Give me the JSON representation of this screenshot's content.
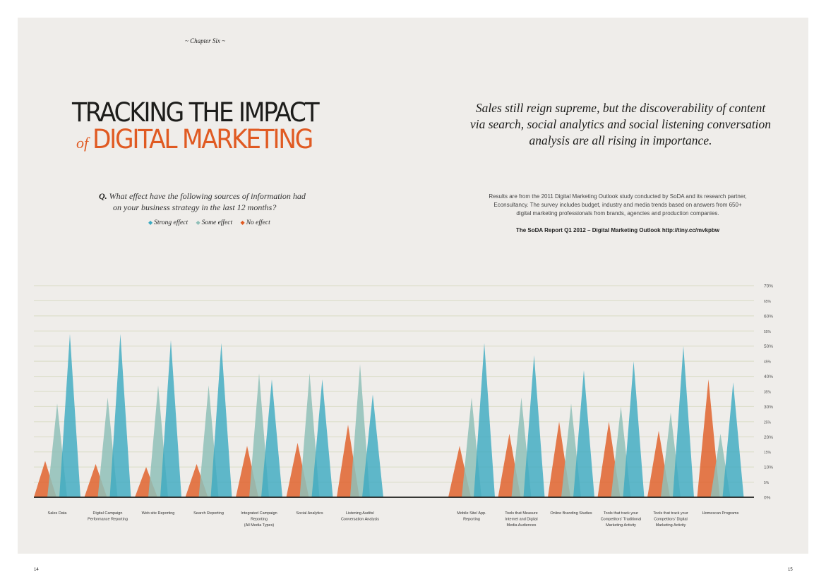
{
  "chapter": "~ Chapter Six ~",
  "title": {
    "line1": "TRACKING THE IMPACT",
    "of": "of",
    "line2": "DIGITAL MARKETING"
  },
  "tagline": "Sales still reign supreme, but the discoverability of content via search, social analytics and social listening conversation analysis are all rising in importance.",
  "question": {
    "mark": "Q.",
    "line1": "What effect have the following sources of information had",
    "line2": "on your business strategy in the last 12 months?"
  },
  "legend": {
    "strong": "Strong effect",
    "some": "Some effect",
    "none": "No effect"
  },
  "source_text": "Results are from the 2011 Digital Marketing Outlook study conducted by SoDA and its research partner, Econsultancy. The survey includes budget, industry and media trends based on answers from 650+ digital marketing professionals from brands, agencies and production companies.",
  "source_ref": "The SoDA Report Q1 2012 – Digital Marketing Outlook http://tiny.cc/mvkpbw",
  "page_left": "14",
  "page_right": "15",
  "colors": {
    "strong": "#3aa9c1",
    "some": "#8fbfb8",
    "none": "#e05a22",
    "background": "#efedea",
    "grid": "#d9dcc4"
  },
  "chart_data": {
    "type": "area",
    "title": "",
    "xlabel": "",
    "ylabel": "",
    "ylim": [
      0,
      70
    ],
    "y_ticks": [
      "0%",
      "5%",
      "10%",
      "15%",
      "20%",
      "25%",
      "30%",
      "35%",
      "40%",
      "45%",
      "50%",
      "55%",
      "60%",
      "65%",
      "70%"
    ],
    "y_tick_values": [
      0,
      5,
      10,
      15,
      20,
      25,
      30,
      35,
      40,
      45,
      50,
      55,
      60,
      65,
      70
    ],
    "grid": true,
    "categories": [
      [
        "Sales Data"
      ],
      [
        "Digital Campaign",
        "Performance Reporting"
      ],
      [
        "Web site Reporting"
      ],
      [
        "Search Reporting"
      ],
      [
        "Integrated Campaign",
        "Reporting",
        "(All Media Types)"
      ],
      [
        "Social Analytics"
      ],
      [
        "Listening Audits/",
        "Conversation Analysis"
      ],
      [
        "Mobile Site/ App.",
        "Reporting"
      ],
      [
        "Tools that Measure",
        "Internet and Digital",
        "Media Audiences"
      ],
      [
        "Online Branding Studies"
      ],
      [
        "Tools that track your",
        "Competitors' Traditional",
        "Marketing Activity"
      ],
      [
        "Tools that track your",
        "Competitors' Digital",
        "Marketing Activity"
      ],
      [
        "Homescan Programs"
      ]
    ],
    "series": [
      {
        "name": "Strong effect",
        "key": "strong",
        "values": [
          54,
          54,
          52,
          51,
          39,
          39,
          34,
          51,
          47,
          42,
          45,
          50,
          38
        ]
      },
      {
        "name": "Some effect",
        "key": "some",
        "values": [
          31,
          33,
          37,
          37,
          41,
          41,
          44,
          33,
          33,
          31,
          30,
          28,
          21
        ]
      },
      {
        "name": "No effect",
        "key": "none",
        "values": [
          12,
          11,
          10,
          11,
          17,
          18,
          24,
          17,
          21,
          25,
          25,
          22,
          39
        ]
      }
    ]
  }
}
